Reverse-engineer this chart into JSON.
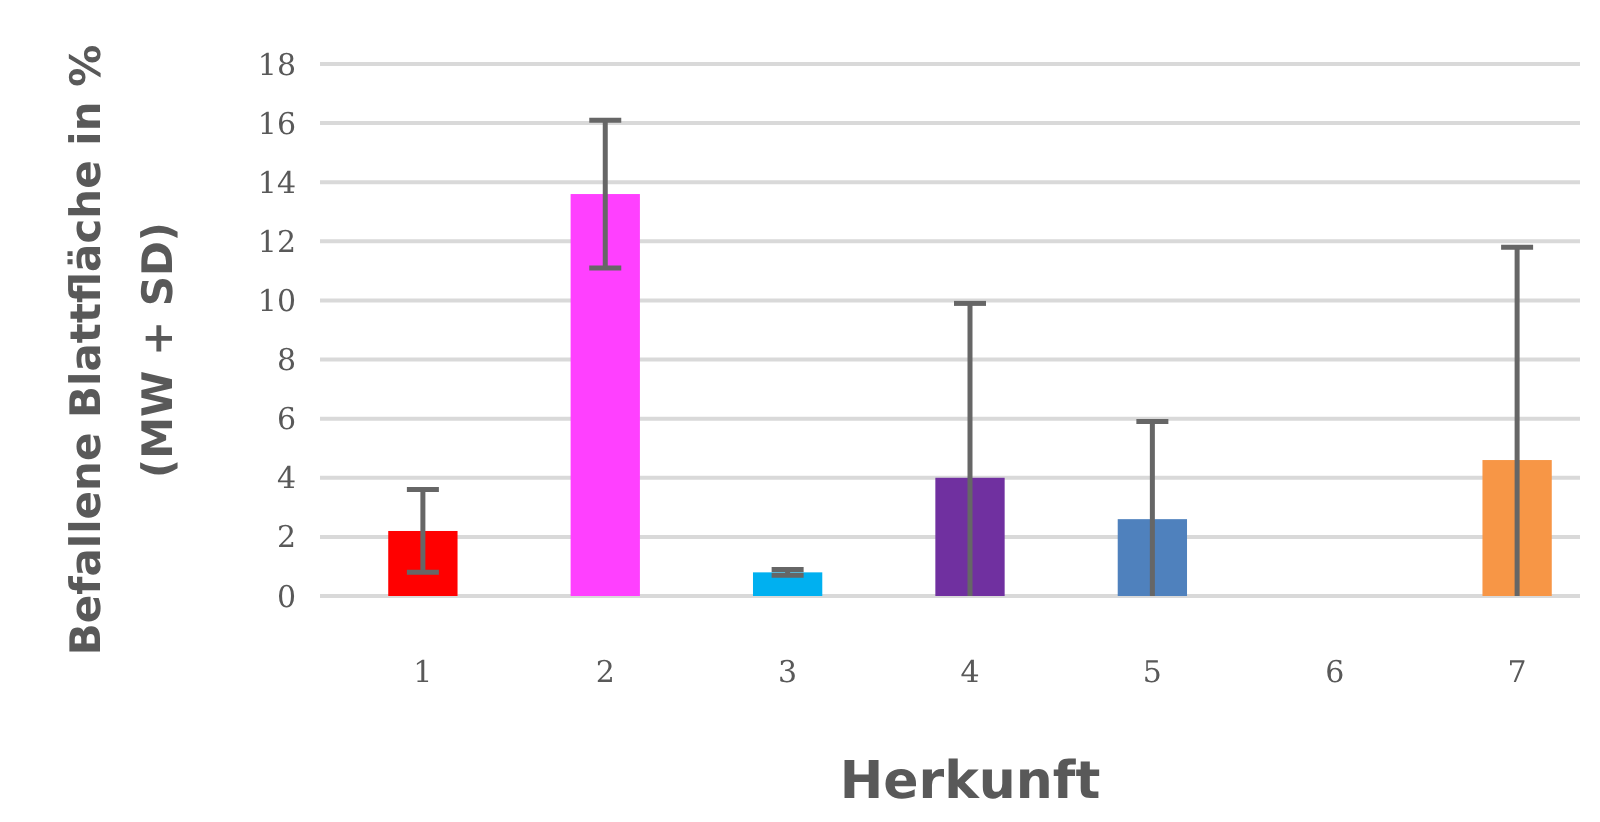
{
  "chart_data": {
    "type": "bar",
    "xlabel": "Herkunft",
    "ylabel": "Befallene Blattfläche in %\n(MW + SD)",
    "categories": [
      "1",
      "2",
      "3",
      "4",
      "5",
      "6",
      "7"
    ],
    "values": [
      2.2,
      13.6,
      0.8,
      4.0,
      2.6,
      null,
      4.6
    ],
    "colors": [
      "#ff0000",
      "#ff40ff",
      "#00b0f0",
      "#7030a0",
      "#4f81bd",
      null,
      "#f79646"
    ],
    "errors": [
      1.4,
      2.5,
      0.1,
      [
        0,
        9.9
      ],
      [
        0,
        5.9
      ],
      null,
      [
        0,
        11.8
      ]
    ],
    "ylim": [
      0,
      18
    ],
    "yticks": [
      0,
      2,
      4,
      6,
      8,
      10,
      12,
      14,
      16,
      18
    ],
    "grid": "y"
  }
}
